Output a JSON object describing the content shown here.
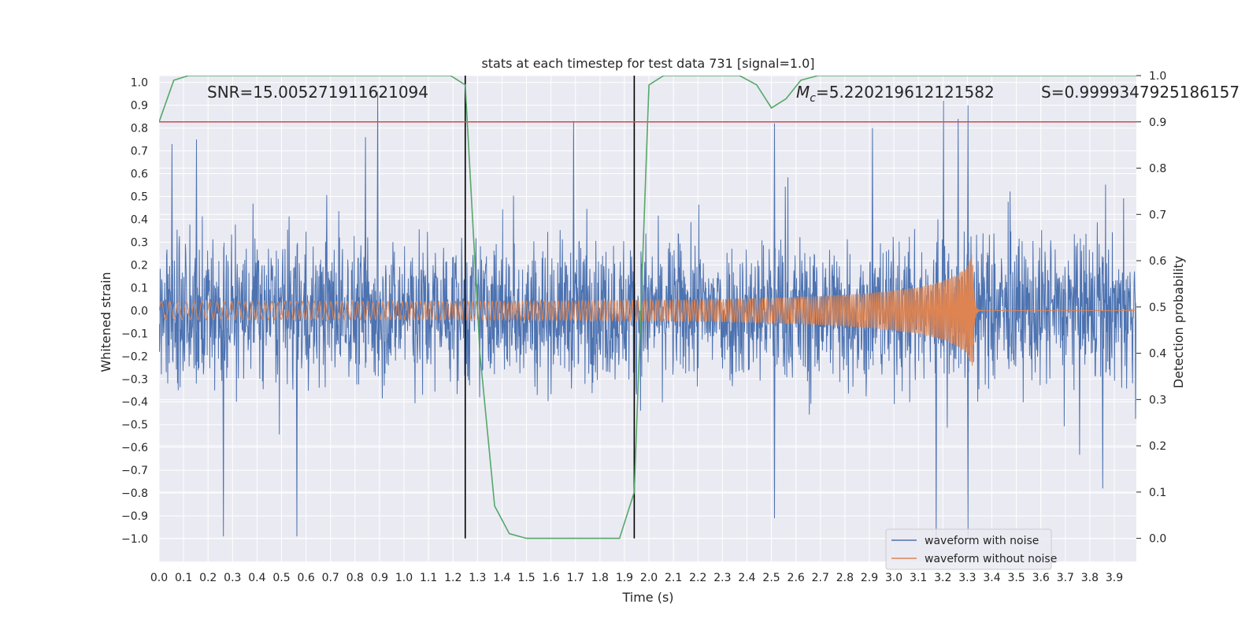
{
  "chart_data": {
    "type": "line",
    "title": "stats at each timestep for test data 731 [signal=1.0]",
    "xlabel": "Time (s)",
    "ylabel": "Whitened strain",
    "y2label": "Detection probability",
    "xlim": [
      0.0,
      3.99
    ],
    "ylim": [
      -1.1,
      1.03
    ],
    "y2lim": [
      -0.05,
      1.0
    ],
    "xticks": [
      "0.0",
      "0.1",
      "0.2",
      "0.3",
      "0.4",
      "0.5",
      "0.6",
      "0.7",
      "0.8",
      "0.9",
      "1.0",
      "1.1",
      "1.2",
      "1.3",
      "1.4",
      "1.5",
      "1.6",
      "1.7",
      "1.8",
      "1.9",
      "2.0",
      "2.1",
      "2.2",
      "2.3",
      "2.4",
      "2.5",
      "2.6",
      "2.7",
      "2.8",
      "2.9",
      "3.0",
      "3.1",
      "3.2",
      "3.3",
      "3.4",
      "3.5",
      "3.6",
      "3.7",
      "3.8",
      "3.9"
    ],
    "yticks": [
      "1.0",
      "0.9",
      "0.8",
      "0.7",
      "0.6",
      "0.5",
      "0.4",
      "0.3",
      "0.2",
      "0.1",
      "0.0",
      "−0.1",
      "−0.2",
      "−0.3",
      "−0.4",
      "−0.5",
      "−0.6",
      "−0.7",
      "−0.8",
      "−0.9",
      "−1.0"
    ],
    "y2ticks": [
      "1.0",
      "0.9",
      "0.8",
      "0.7",
      "0.6",
      "0.5",
      "0.4",
      "0.3",
      "0.2",
      "0.1",
      "0.0"
    ],
    "annotations": {
      "snr": "SNR=15.005271911621094",
      "mc_symbol": "M",
      "mc_sub": "c",
      "mc_value": "=5.220219612121582",
      "s": "S=0.9999347925186157"
    },
    "legend": {
      "placement": "lower-right",
      "entries": [
        "waveform with noise",
        "waveform without noise"
      ]
    },
    "threshold": {
      "axis": "right",
      "value": 0.9
    },
    "vlines": [
      1.25,
      1.94
    ],
    "noisy_waveform": {
      "name": "waveform with noise",
      "description": "whitened noisy strain sampled over 0–3.99 s, amplitude mostly within ±0.5 with spikes near ±1.0",
      "spikes": [
        [
          0.05,
          0.73
        ],
        [
          0.15,
          0.75
        ],
        [
          0.26,
          -0.99
        ],
        [
          0.56,
          -0.99
        ],
        [
          0.84,
          0.76
        ],
        [
          0.89,
          0.96
        ],
        [
          1.69,
          0.83
        ],
        [
          2.51,
          0.82
        ],
        [
          2.51,
          -0.91
        ],
        [
          2.91,
          0.8
        ],
        [
          3.17,
          -1.0
        ],
        [
          3.2,
          0.92
        ],
        [
          3.26,
          0.84
        ],
        [
          3.3,
          -0.99
        ],
        [
          3.3,
          0.9
        ],
        [
          3.85,
          -0.78
        ]
      ]
    },
    "clean_waveform": {
      "name": "waveform without noise",
      "description": "inspiral chirp, amplitude growing from 0.04 to 0.31 with rising frequency, merging at about 3.32 s then ringdown to 0.0",
      "merger_time": 3.32,
      "start_amplitude": 0.04,
      "peak_amplitude": 0.31,
      "start_frequency_hz": 28,
      "end_frequency_hz": 220
    },
    "probability": {
      "name": "Detection probability",
      "axis": "right",
      "x": [
        0.0,
        0.06,
        0.12,
        0.2,
        0.3,
        0.5,
        0.8,
        1.0,
        1.13,
        1.19,
        1.25,
        1.31,
        1.37,
        1.43,
        1.5,
        1.62,
        1.75,
        1.81,
        1.88,
        1.94,
        2.0,
        2.06,
        2.12,
        2.25,
        2.37,
        2.44,
        2.5,
        2.56,
        2.62,
        2.69,
        2.8,
        3.0,
        3.2,
        3.5,
        3.8,
        3.99
      ],
      "y": [
        0.9,
        0.99,
        1.0,
        1.0,
        1.0,
        1.0,
        1.0,
        1.0,
        1.0,
        1.0,
        0.98,
        0.4,
        0.07,
        0.01,
        0.0,
        0.0,
        0.0,
        0.0,
        0.0,
        0.1,
        0.98,
        1.0,
        1.0,
        1.0,
        1.0,
        0.98,
        0.93,
        0.95,
        0.99,
        1.0,
        1.0,
        1.0,
        1.0,
        1.0,
        1.0,
        1.0
      ]
    },
    "colors": {
      "noisy": "#4c72b0",
      "clean": "#dd8452",
      "probability": "#55a868",
      "threshold": "#c44e52",
      "vline": "#000000",
      "background": "#eaeaf2",
      "grid": "#ffffff"
    }
  }
}
